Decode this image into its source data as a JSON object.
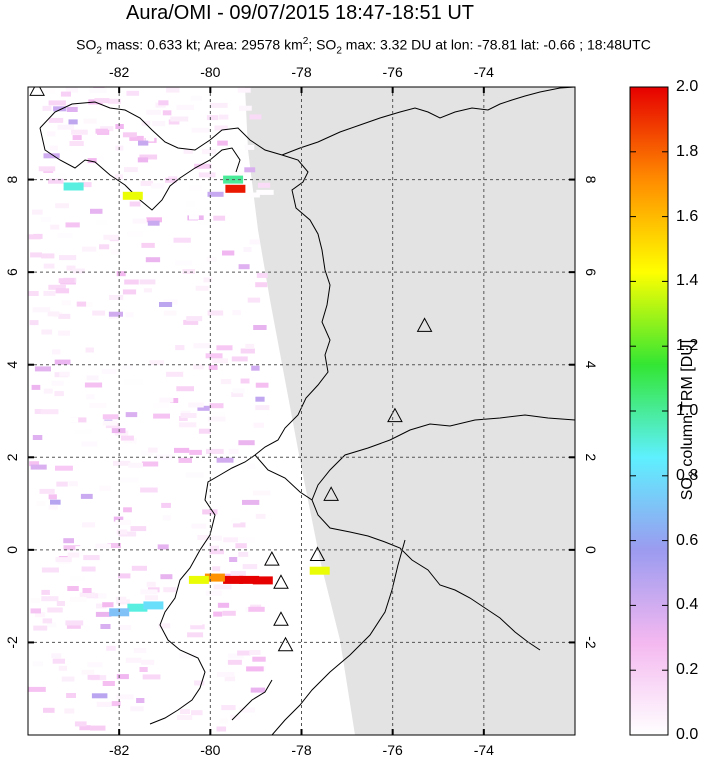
{
  "header": {
    "title": "Aura/OMI - 09/07/2015 18:47-18:51 UT",
    "subtitle_parts": [
      "SO",
      "2",
      " mass: 0.633 kt; Area: 29578 km",
      "2",
      "; SO",
      "2",
      " max: 3.32 DU at lon: -78.81 lat: -0.66 ; 18:48UTC"
    ]
  },
  "map": {
    "lon_range": [
      -84,
      -72
    ],
    "lat_range": [
      -4,
      10
    ],
    "lon_ticks": [
      "-82",
      "-80",
      "-78",
      "-76",
      "-74"
    ],
    "lon_tick_values": [
      -82,
      -80,
      -78,
      -76,
      -74
    ],
    "lat_ticks": [
      "8",
      "6",
      "4",
      "2",
      "0",
      "-2"
    ],
    "lat_tick_values": [
      8,
      6,
      4,
      2,
      0,
      -2
    ],
    "land_color": "#e3e3e3",
    "ocean_color": "#ffffff",
    "volcano_markers": [
      {
        "lon": -83.8,
        "lat": 9.95
      },
      {
        "lon": -75.3,
        "lat": 4.85
      },
      {
        "lon": -75.95,
        "lat": 2.9
      },
      {
        "lon": -77.35,
        "lat": 1.2
      },
      {
        "lon": -77.65,
        "lat": -0.1
      },
      {
        "lon": -78.65,
        "lat": -0.2
      },
      {
        "lon": -78.45,
        "lat": -0.7
      },
      {
        "lon": -78.45,
        "lat": -1.5
      },
      {
        "lon": -78.35,
        "lat": -2.05
      }
    ],
    "so2_hotspots": [
      {
        "lon": -79.5,
        "lat": -0.65,
        "du": 2.0
      },
      {
        "lon": -79.15,
        "lat": -0.65,
        "du": 2.0
      },
      {
        "lon": -78.85,
        "lat": -0.66,
        "du": 2.0
      },
      {
        "lon": -79.9,
        "lat": -0.6,
        "du": 1.7
      },
      {
        "lon": -80.25,
        "lat": -0.65,
        "du": 1.4
      },
      {
        "lon": -81.6,
        "lat": -1.25,
        "du": 0.9
      },
      {
        "lon": -81.25,
        "lat": -1.2,
        "du": 0.8
      },
      {
        "lon": -82.0,
        "lat": -1.35,
        "du": 0.7
      },
      {
        "lon": -81.7,
        "lat": 7.65,
        "du": 1.4
      },
      {
        "lon": -83.0,
        "lat": 7.85,
        "du": 0.9
      },
      {
        "lon": -79.45,
        "lat": 7.8,
        "du": 1.95
      },
      {
        "lon": -79.5,
        "lat": 8.0,
        "du": 1.0
      },
      {
        "lon": -77.6,
        "lat": -0.45,
        "du": 1.4
      }
    ]
  },
  "colorbar": {
    "ticks": [
      "2.0",
      "1.8",
      "1.6",
      "1.4",
      "1.2",
      "1.0",
      "0.8",
      "0.6",
      "0.4",
      "0.2",
      "0.0"
    ],
    "min": 0.0,
    "max": 2.0,
    "title_main": "SO",
    "title_sub": "2",
    "title_rest": " column TRM [DU]",
    "stops": [
      "#ffffff",
      "#f4b8f0",
      "#9b9bf0",
      "#5ef0ff",
      "#33e633",
      "#ffff00",
      "#ff8c00",
      "#e60000"
    ]
  }
}
